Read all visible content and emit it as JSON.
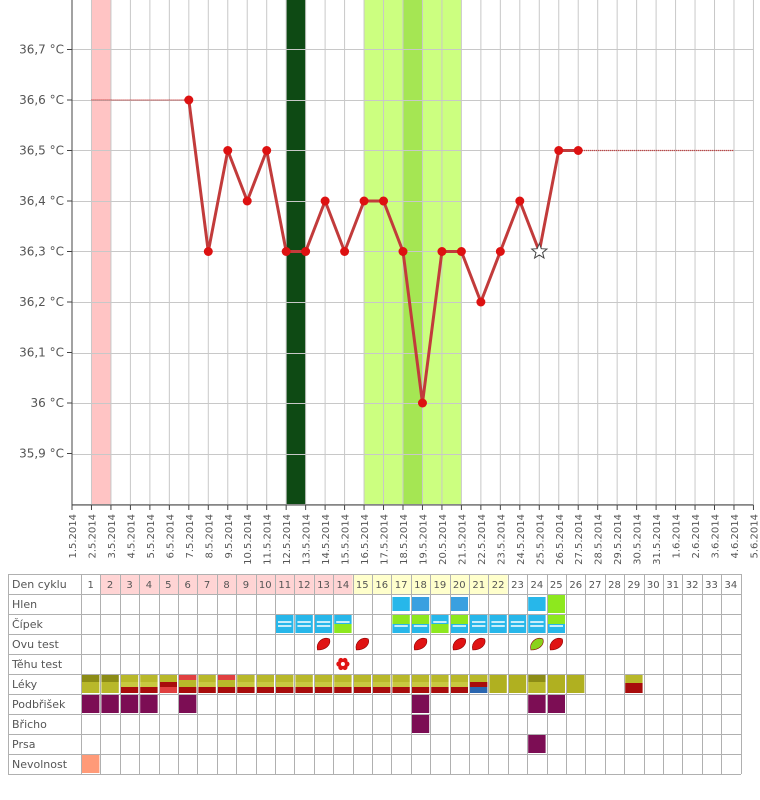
{
  "chart_data": {
    "type": "line",
    "title": "",
    "xlabel": "",
    "ylabel": "",
    "x": [
      "1.5.2014",
      "2.5.2014",
      "3.5.2014",
      "4.5.2014",
      "5.5.2014",
      "6.5.2014",
      "7.5.2014",
      "8.5.2014",
      "9.5.2014",
      "10.5.2014",
      "11.5.2014",
      "12.5.2014",
      "13.5.2014",
      "14.5.2014",
      "15.5.2014",
      "16.5.2014",
      "17.5.2014",
      "18.5.2014",
      "19.5.2014",
      "20.5.2014",
      "21.5.2014",
      "22.5.2014",
      "23.5.2014",
      "24.5.2014",
      "25.5.2014",
      "26.5.2014",
      "27.5.2014",
      "28.5.2014",
      "29.5.2014",
      "30.5.2014",
      "31.5.2014",
      "1.6.2014",
      "2.6.2014",
      "3.6.2014",
      "4.6.2014",
      "5.6.2014"
    ],
    "y_ticks": [
      "36,7 °C",
      "36,6 °C",
      "36,5 °C",
      "36,4 °C",
      "36,3 °C",
      "36,2 °C",
      "36,1 °C",
      "36 °C",
      "35,9 °C"
    ],
    "ylim": [
      35.8,
      36.8
    ],
    "series": [
      {
        "values": [
          null,
          null,
          null,
          null,
          null,
          null,
          36.6,
          36.3,
          36.5,
          36.4,
          36.5,
          36.3,
          36.3,
          36.4,
          36.3,
          36.4,
          36.4,
          36.3,
          36.0,
          36.3,
          36.3,
          36.2,
          36.3,
          36.4,
          36.3,
          36.5,
          36.5,
          null,
          null,
          null,
          null,
          null,
          null,
          null,
          null,
          null
        ],
        "color": "#c23b3b"
      }
    ],
    "flat_lines": [
      {
        "from": "2.5.2014",
        "to": "7.5.2014",
        "value": 36.6
      },
      {
        "from": "27.5.2014",
        "to": "4.6.2014",
        "value": 36.5
      }
    ],
    "star_point": {
      "x": "25.5.2014",
      "value": 36.3
    },
    "bands": [
      {
        "from": "2.5.2014",
        "to": "3.5.2014",
        "color": "#ffc4c4"
      },
      {
        "from": "12.5.2014",
        "to": "13.5.2014",
        "color": "#0e4a14"
      },
      {
        "from": "16.5.2014",
        "to": "21.5.2014",
        "color": "#ccff80"
      },
      {
        "from": "18.5.2014",
        "to": "19.5.2014",
        "color": "#a5e653"
      }
    ],
    "grid": true
  },
  "cycle_table": {
    "header_label": "Den cyklu",
    "days": [
      "1",
      "2",
      "3",
      "4",
      "5",
      "6",
      "7",
      "8",
      "9",
      "10",
      "11",
      "12",
      "13",
      "14",
      "15",
      "16",
      "17",
      "18",
      "19",
      "20",
      "21",
      "22",
      "23",
      "24",
      "25",
      "26",
      "27",
      "28",
      "29",
      "30",
      "31",
      "32",
      "33",
      "34"
    ],
    "day_colors": [
      "#ffffff",
      "#ffd4d4",
      "#ffd4d4",
      "#ffd4d4",
      "#ffd4d4",
      "#ffd4d4",
      "#ffd4d4",
      "#ffd4d4",
      "#ffd4d4",
      "#ffd4d4",
      "#ffd4d4",
      "#ffd4d4",
      "#ffd4d4",
      "#ffd4d4",
      "#ffffcc",
      "#ffffcc",
      "#ffffcc",
      "#ffffcc",
      "#ffffcc",
      "#ffffcc",
      "#ffffcc",
      "#ffffcc",
      "#ffffff",
      "#ffffff",
      "#ffffff",
      "#ffffff",
      "#ffffff",
      "#ffffff",
      "#ffffff",
      "#ffffff",
      "#ffffff",
      "#ffffff",
      "#ffffff",
      "#ffffff"
    ],
    "rows": [
      {
        "label": "Hlen",
        "cells": [
          {
            "day": 17,
            "kind": "blue"
          },
          {
            "day": 18,
            "kind": "blue2"
          },
          {
            "day": 20,
            "kind": "blue2"
          },
          {
            "day": 24,
            "kind": "blue"
          },
          {
            "day": 25,
            "kind": "green"
          }
        ]
      },
      {
        "label": "Čípek",
        "cells": [
          {
            "day": 11,
            "kind": "cervix-blue"
          },
          {
            "day": 12,
            "kind": "cervix-blue"
          },
          {
            "day": 13,
            "kind": "cervix-blue"
          },
          {
            "day": 14,
            "kind": "cervix-mix"
          },
          {
            "day": 17,
            "kind": "cervix-green"
          },
          {
            "day": 18,
            "kind": "cervix-green"
          },
          {
            "day": 19,
            "kind": "cervix-mix"
          },
          {
            "day": 20,
            "kind": "cervix-green"
          },
          {
            "day": 21,
            "kind": "cervix-blue"
          },
          {
            "day": 22,
            "kind": "cervix-blue"
          },
          {
            "day": 23,
            "kind": "cervix-blue"
          },
          {
            "day": 24,
            "kind": "cervix-blue"
          },
          {
            "day": 25,
            "kind": "cervix-green"
          }
        ]
      },
      {
        "label": "Ovu test",
        "cells": [
          {
            "day": 13,
            "kind": "drop-red"
          },
          {
            "day": 15,
            "kind": "drop-red"
          },
          {
            "day": 18,
            "kind": "drop-red"
          },
          {
            "day": 20,
            "kind": "drop-red"
          },
          {
            "day": 21,
            "kind": "drop-red"
          },
          {
            "day": 24,
            "kind": "drop-green"
          },
          {
            "day": 25,
            "kind": "drop-red"
          }
        ]
      },
      {
        "label": "Těhu test",
        "cells": [
          {
            "day": 14,
            "kind": "flower"
          }
        ]
      },
      {
        "label": "Léky",
        "cells": [
          {
            "day": 1,
            "kind": "med-a"
          },
          {
            "day": 2,
            "kind": "med-a"
          },
          {
            "day": 3,
            "kind": "med-b"
          },
          {
            "day": 4,
            "kind": "med-b"
          },
          {
            "day": 5,
            "kind": "med-c"
          },
          {
            "day": 6,
            "kind": "med-d"
          },
          {
            "day": 7,
            "kind": "med-b"
          },
          {
            "day": 8,
            "kind": "med-d"
          },
          {
            "day": 9,
            "kind": "med-b"
          },
          {
            "day": 10,
            "kind": "med-b"
          },
          {
            "day": 11,
            "kind": "med-b"
          },
          {
            "day": 12,
            "kind": "med-b"
          },
          {
            "day": 13,
            "kind": "med-b"
          },
          {
            "day": 14,
            "kind": "med-b"
          },
          {
            "day": 15,
            "kind": "med-b"
          },
          {
            "day": 16,
            "kind": "med-b"
          },
          {
            "day": 17,
            "kind": "med-b"
          },
          {
            "day": 18,
            "kind": "med-b"
          },
          {
            "day": 19,
            "kind": "med-b"
          },
          {
            "day": 20,
            "kind": "med-b"
          },
          {
            "day": 21,
            "kind": "med-e"
          },
          {
            "day": 22,
            "kind": "med-olive"
          },
          {
            "day": 23,
            "kind": "med-olive"
          },
          {
            "day": 24,
            "kind": "med-a"
          },
          {
            "day": 25,
            "kind": "med-olive"
          },
          {
            "day": 26,
            "kind": "med-olive"
          },
          {
            "day": 29,
            "kind": "med-f"
          }
        ]
      },
      {
        "label": "Podbřišek",
        "cells": [
          {
            "day": 1,
            "kind": "purple"
          },
          {
            "day": 2,
            "kind": "purple"
          },
          {
            "day": 3,
            "kind": "purple"
          },
          {
            "day": 4,
            "kind": "purple"
          },
          {
            "day": 6,
            "kind": "purple"
          },
          {
            "day": 18,
            "kind": "purple"
          },
          {
            "day": 24,
            "kind": "purple"
          },
          {
            "day": 25,
            "kind": "purple"
          }
        ]
      },
      {
        "label": "Břicho",
        "cells": [
          {
            "day": 18,
            "kind": "purple"
          }
        ]
      },
      {
        "label": "Prsa",
        "cells": [
          {
            "day": 24,
            "kind": "purple"
          }
        ]
      },
      {
        "label": "Nevolnost",
        "cells": [
          {
            "day": 1,
            "kind": "salmon"
          }
        ]
      }
    ]
  }
}
